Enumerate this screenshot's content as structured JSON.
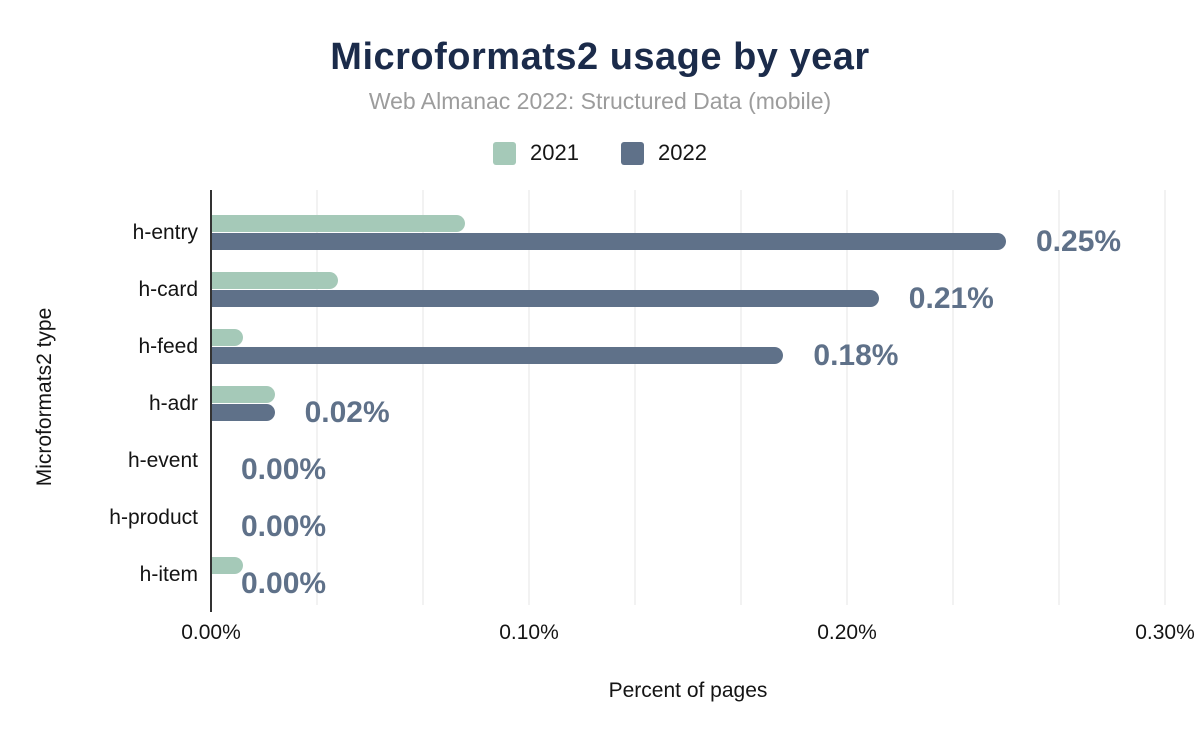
{
  "header": {
    "title": "Microformats2 usage by year",
    "subtitle": "Web Almanac 2022: Structured Data (mobile)"
  },
  "chart_data": {
    "type": "bar",
    "orientation": "horizontal",
    "title": "Microformats2 usage by year",
    "subtitle": "Web Almanac 2022: Structured Data (mobile)",
    "categories": [
      "h-entry",
      "h-card",
      "h-feed",
      "h-adr",
      "h-event",
      "h-product",
      "h-item"
    ],
    "series": [
      {
        "name": "2021",
        "color": "#a5c9b8",
        "values": [
          0.08,
          0.04,
          0.01,
          0.02,
          0.0,
          0.0,
          0.01
        ]
      },
      {
        "name": "2022",
        "color": "#5f7189",
        "values": [
          0.25,
          0.21,
          0.18,
          0.02,
          0.0,
          0.0,
          0.0
        ],
        "data_labels": [
          "0.25%",
          "0.21%",
          "0.18%",
          "0.02%",
          "0.00%",
          "0.00%",
          "0.00%"
        ]
      }
    ],
    "xlabel": "Percent of pages",
    "ylabel": "Microformats2 type",
    "xlim": [
      0,
      0.3
    ],
    "x_ticks": [
      {
        "value": 0.0,
        "label": "0.00%"
      },
      {
        "value": 0.1,
        "label": "0.10%"
      },
      {
        "value": 0.2,
        "label": "0.20%"
      },
      {
        "value": 0.3,
        "label": "0.30%"
      }
    ],
    "grid": {
      "minor_step": 0.0333333,
      "color": "#f2f2f2",
      "show": true
    },
    "legend_position": "top",
    "data_label_color": "#5f7189",
    "title_color": "#1b2b4a",
    "subtitle_color": "#9c9c9c"
  }
}
